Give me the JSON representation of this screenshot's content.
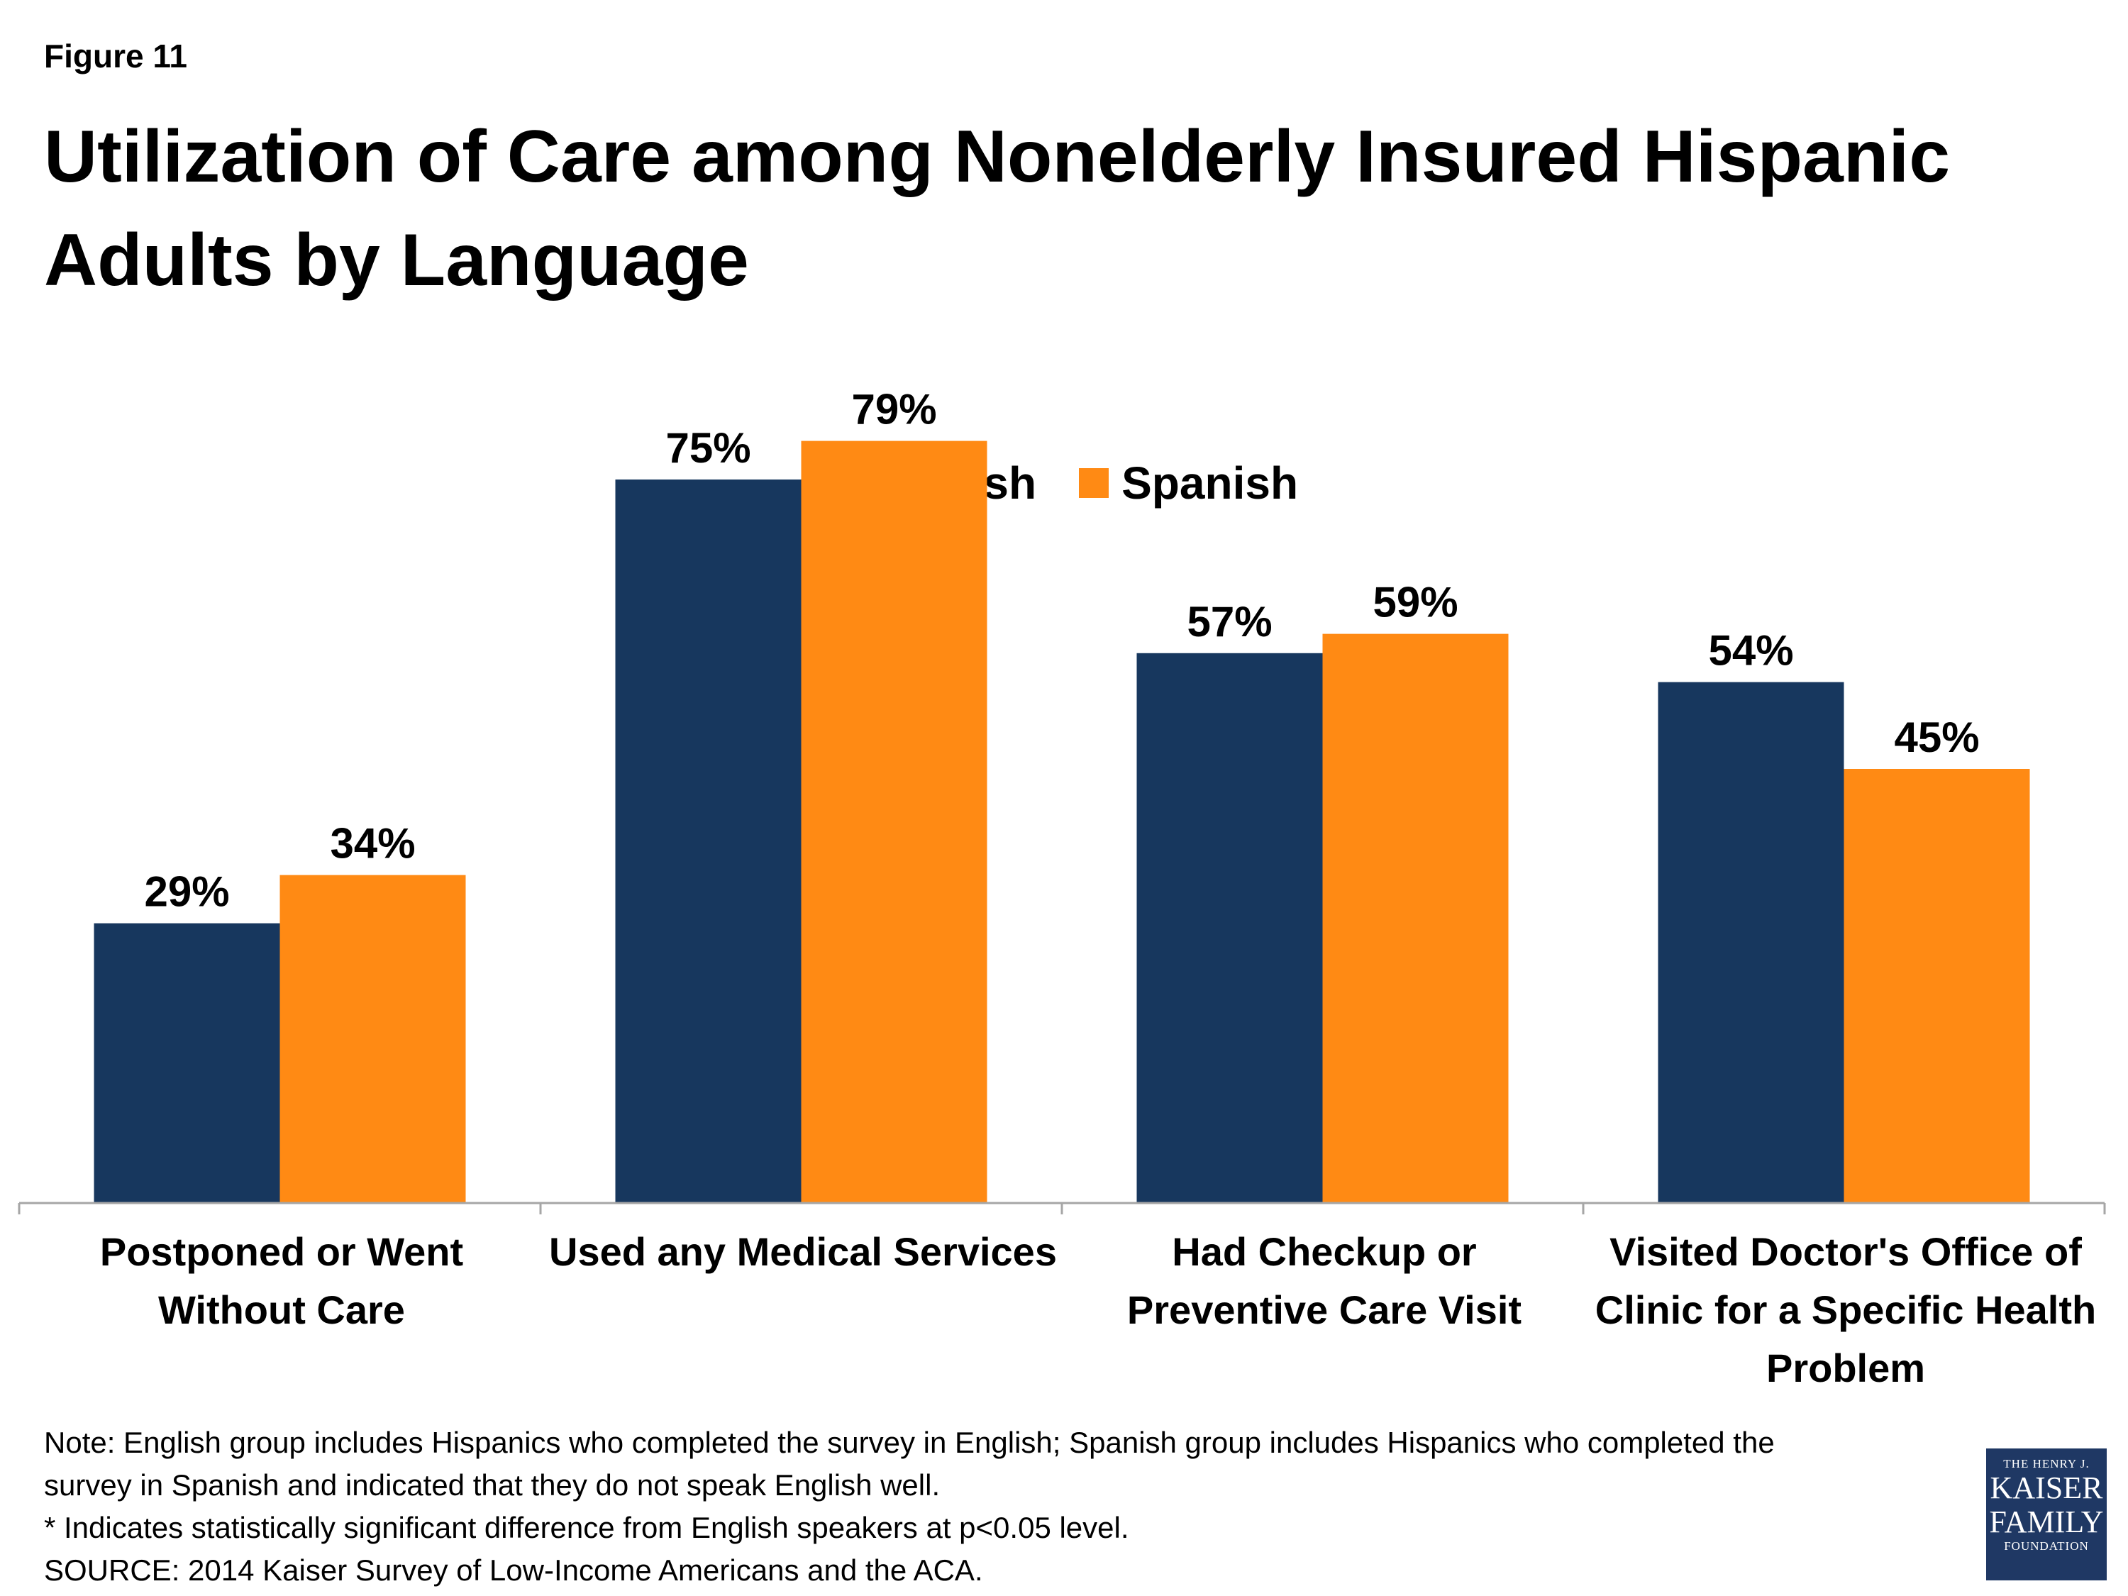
{
  "figure_label": "Figure 11",
  "chart_data": {
    "type": "bar",
    "title": "Utilization of Care among Nonelderly Insured Hispanic Adults by Language",
    "categories": [
      "Postponed or Went Without Care",
      "Used any Medical Services",
      "Had Checkup or Preventive Care Visit",
      "Visited Doctor's Office of Clinic for a Specific Health Problem"
    ],
    "category_lines": [
      "Postponed or Went\nWithout Care",
      "Used any Medical Services",
      "Had Checkup or\nPreventive Care Visit",
      "Visited Doctor's Office of\nClinic for a Specific Health\nProblem"
    ],
    "series": [
      {
        "name": "English",
        "color": "#17375e",
        "values": [
          29,
          75,
          57,
          54
        ],
        "labels": [
          "29%",
          "75%",
          "57%",
          "54%"
        ]
      },
      {
        "name": "Spanish",
        "color": "#ff8a14",
        "values": [
          34,
          79,
          59,
          45
        ],
        "labels": [
          "34%",
          "79%",
          "59%",
          "45%"
        ]
      }
    ],
    "ylim": [
      0,
      100
    ],
    "grid": false,
    "legend_position": "top-center",
    "xlabel": "",
    "ylabel": ""
  },
  "notes": [
    "Note: English group includes Hispanics who completed the survey in English; Spanish group includes Hispanics who completed the",
    "survey in Spanish and indicated that they do not speak English well.",
    "* Indicates statistically significant difference from English speakers at p<0.05 level.",
    "SOURCE: 2014 Kaiser Survey of Low-Income Americans and the ACA."
  ],
  "logo": {
    "line1": "THE HENRY J.",
    "line2": "KAISER",
    "line3": "FAMILY",
    "line4": "FOUNDATION"
  }
}
